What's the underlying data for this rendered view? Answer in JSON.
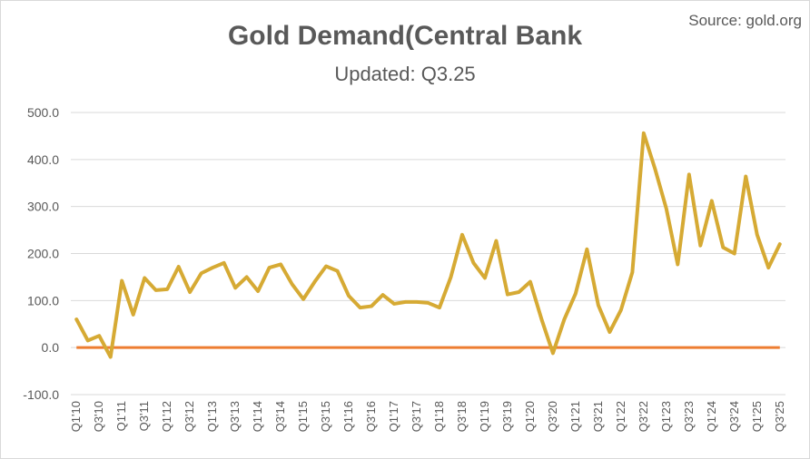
{
  "source_label": "Source: gold.org",
  "colors": {
    "line": "#d6aa34",
    "zero_line": "#ed7d31",
    "grid": "#d9d9d9",
    "text": "#595959"
  },
  "chart_data": {
    "type": "line",
    "title": "Gold Demand(Central Bank",
    "subtitle": "Updated: Q3.25",
    "xlabel": "",
    "ylabel": "",
    "ylim": [
      -100,
      500
    ],
    "yticks": [
      -100,
      0,
      100,
      200,
      300,
      400,
      500
    ],
    "ytick_labels": [
      "-100.0",
      "0.0",
      "100.0",
      "200.0",
      "300.0",
      "400.0",
      "500.0"
    ],
    "grid": true,
    "legend": "none",
    "x": [
      "Q1'10",
      "Q2'10",
      "Q3'10",
      "Q4'10",
      "Q1'11",
      "Q2'11",
      "Q3'11",
      "Q4'11",
      "Q1'12",
      "Q2'12",
      "Q3'12",
      "Q4'12",
      "Q1'13",
      "Q2'13",
      "Q3'13",
      "Q4'13",
      "Q1'14",
      "Q2'14",
      "Q3'14",
      "Q4'14",
      "Q1'15",
      "Q2'15",
      "Q3'15",
      "Q4'15",
      "Q1'16",
      "Q2'16",
      "Q3'16",
      "Q4'16",
      "Q1'17",
      "Q2'17",
      "Q3'17",
      "Q4'17",
      "Q1'18",
      "Q2'18",
      "Q3'18",
      "Q4'18",
      "Q1'19",
      "Q2'19",
      "Q3'19",
      "Q4'19",
      "Q1'20",
      "Q2'20",
      "Q3'20",
      "Q4'20",
      "Q1'21",
      "Q2'21",
      "Q3'21",
      "Q4'21",
      "Q1'22",
      "Q2'22",
      "Q3'22",
      "Q4'22",
      "Q1'23",
      "Q2'23",
      "Q3'23",
      "Q4'23",
      "Q1'24",
      "Q2'24",
      "Q3'24",
      "Q4'24",
      "Q1'25",
      "Q2'25",
      "Q3'25"
    ],
    "x_tick_labels": [
      "Q1'10",
      "Q3'10",
      "Q1'11",
      "Q3'11",
      "Q1'12",
      "Q3'12",
      "Q1'13",
      "Q3'13",
      "Q1'14",
      "Q3'14",
      "Q1'15",
      "Q3'15",
      "Q1'16",
      "Q3'16",
      "Q1'17",
      "Q3'17",
      "Q1'18",
      "Q3'18",
      "Q1'19",
      "Q3'19",
      "Q1'20",
      "Q3'20",
      "Q1'21",
      "Q3'21",
      "Q1'22",
      "Q3'22",
      "Q1'23",
      "Q3'23",
      "Q1'24",
      "Q3'24",
      "Q1'25",
      "Q3'25"
    ],
    "series": [
      {
        "values": [
          60,
          15,
          25,
          -20,
          142,
          70,
          148,
          122,
          124,
          172,
          118,
          158,
          170,
          180,
          127,
          150,
          120,
          170,
          177,
          135,
          103,
          140,
          173,
          163,
          110,
          85,
          88,
          112,
          93,
          97,
          97,
          95,
          85,
          150,
          240,
          180,
          148,
          227,
          113,
          118,
          140,
          60,
          -12,
          60,
          115,
          209,
          90,
          33,
          80,
          160,
          456,
          380,
          295,
          177,
          368,
          217,
          312,
          213,
          200,
          364,
          240,
          170,
          220
        ]
      },
      {
        "values": [
          0,
          0,
          0,
          0,
          0,
          0,
          0,
          0,
          0,
          0,
          0,
          0,
          0,
          0,
          0,
          0,
          0,
          0,
          0,
          0,
          0,
          0,
          0,
          0,
          0,
          0,
          0,
          0,
          0,
          0,
          0,
          0,
          0,
          0,
          0,
          0,
          0,
          0,
          0,
          0,
          0,
          0,
          0,
          0,
          0,
          0,
          0,
          0,
          0,
          0,
          0,
          0,
          0,
          0,
          0,
          0,
          0,
          0,
          0,
          0,
          0,
          0,
          0
        ]
      }
    ]
  }
}
